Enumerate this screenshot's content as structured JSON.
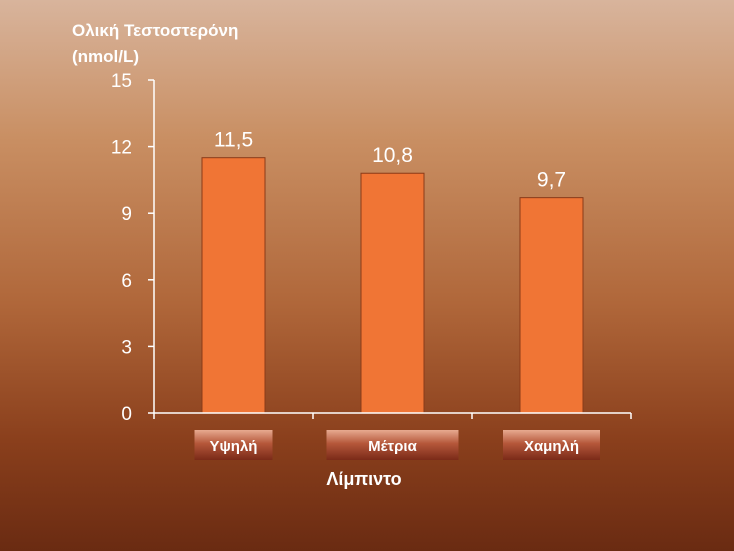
{
  "chart_data": {
    "type": "bar",
    "ylabel": "Ολική Τεστοστερόνη (nmol/L)",
    "ylabel_lines": [
      "Ολική Τεστοστερόνη",
      "(nmol/L)"
    ],
    "xlabel": "Λίμπιντο",
    "categories": [
      "Υψηλή",
      "Μέτρια",
      "Χαμηλή"
    ],
    "values": [
      11.5,
      10.8,
      9.7
    ],
    "value_labels": [
      "11,5",
      "10,8",
      "9,7"
    ],
    "ylim": [
      0,
      15
    ],
    "yticks": [
      0,
      3,
      6,
      9,
      12,
      15
    ],
    "grid": false,
    "legend": "none",
    "bar_color": "#f07535",
    "axis_color": "#ffffff"
  }
}
